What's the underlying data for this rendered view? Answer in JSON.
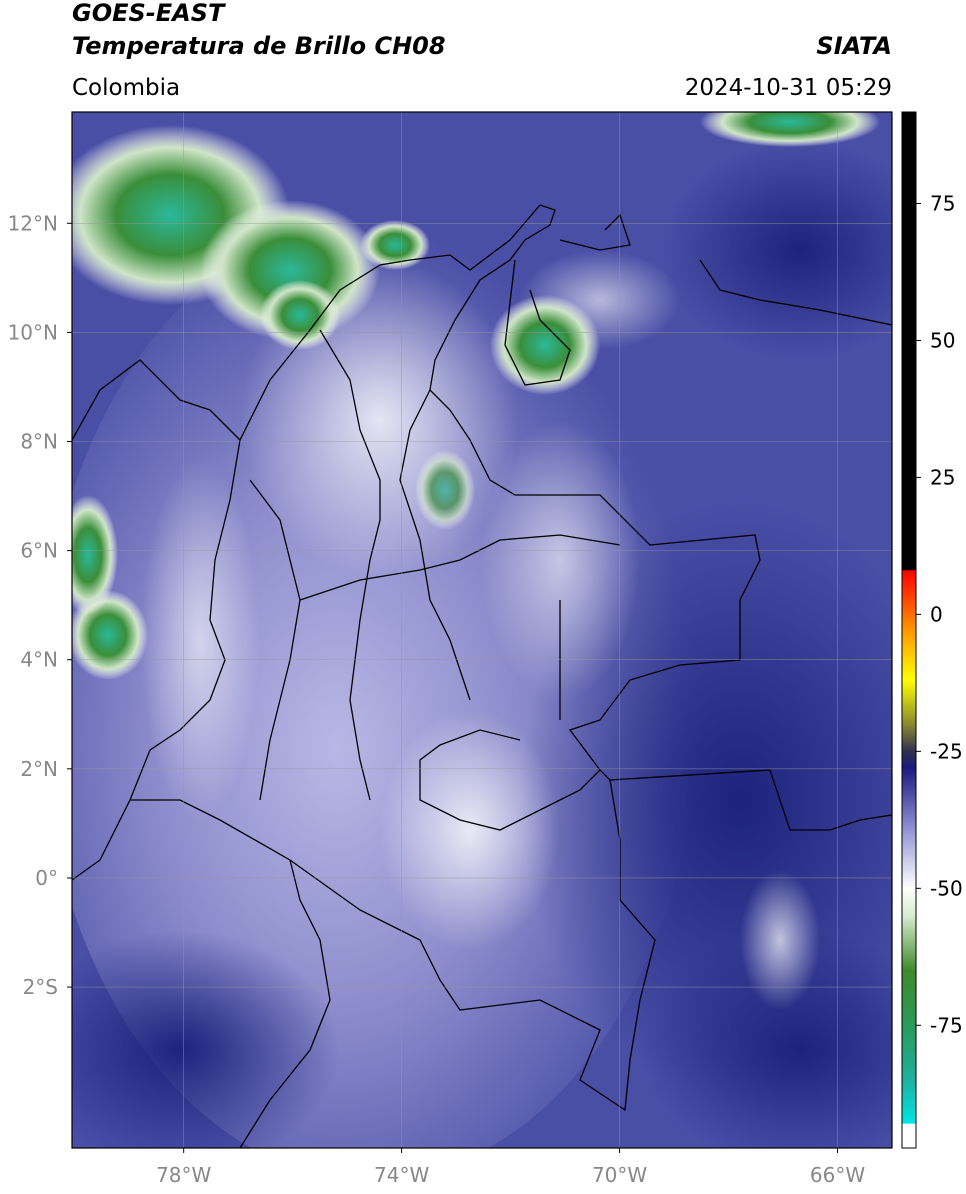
{
  "header": {
    "title": "GOES-EAST",
    "subtitle": "Temperatura de Brillo CH08",
    "source": "SIATA",
    "region": "Colombia",
    "datetime": "2024-10-31 05:29"
  },
  "map": {
    "xlim": [
      -80.05,
      -65.0
    ],
    "ylim": [
      -4.95,
      14.04
    ],
    "xticks": [
      {
        "value": -78,
        "label": "78°W"
      },
      {
        "value": -74,
        "label": "74°W"
      },
      {
        "value": -70,
        "label": "70°W"
      },
      {
        "value": -66,
        "label": "66°W"
      }
    ],
    "yticks": [
      {
        "value": 12,
        "label": "12°N"
      },
      {
        "value": 10,
        "label": "10°N"
      },
      {
        "value": 8,
        "label": "8°N"
      },
      {
        "value": 6,
        "label": "6°N"
      },
      {
        "value": 4,
        "label": "4°N"
      },
      {
        "value": 2,
        "label": "2°N"
      },
      {
        "value": 0,
        "label": "0°"
      },
      {
        "value": -2,
        "label": "2°S"
      }
    ],
    "grid": true
  },
  "colorbar": {
    "lim": [
      -97.4,
      91.7
    ],
    "ticks": [
      75,
      50,
      25,
      0,
      -25,
      -50,
      -75
    ],
    "colormap": [
      {
        "value": -97.4,
        "color": "#ffffff"
      },
      {
        "value": -93,
        "color": "#ffffff"
      },
      {
        "value": -92.9,
        "color": "#00e5e5"
      },
      {
        "value": -85,
        "color": "#1fb0a0"
      },
      {
        "value": -75,
        "color": "#2b9a5a"
      },
      {
        "value": -65,
        "color": "#3f8a2a"
      },
      {
        "value": -55,
        "color": "#d8ecd0"
      },
      {
        "value": -50,
        "color": "#ffffff"
      },
      {
        "value": -40,
        "color": "#9a9ad8"
      },
      {
        "value": -28,
        "color": "#1a1a80"
      },
      {
        "value": -25,
        "color": "#303050"
      },
      {
        "value": -20,
        "color": "#8a8a30"
      },
      {
        "value": -12,
        "color": "#ffff00"
      },
      {
        "value": -3,
        "color": "#ff9900"
      },
      {
        "value": 8,
        "color": "#ff0000"
      },
      {
        "value": 8.1,
        "color": "#000000"
      },
      {
        "value": 91.7,
        "color": "#000000"
      }
    ]
  }
}
